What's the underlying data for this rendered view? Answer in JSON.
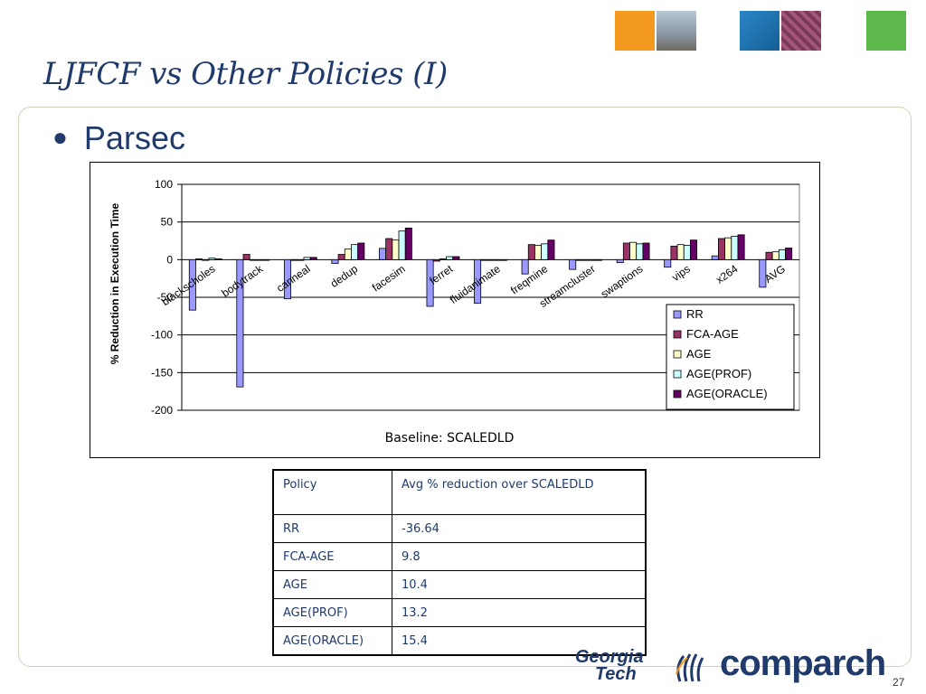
{
  "slide": {
    "title": "LJFCF vs Other Policies (I)",
    "bullet": "Parsec",
    "page_number": "27"
  },
  "header_images": [
    {
      "name": "orange-tile-icon",
      "color": "#f39a1f"
    },
    {
      "name": "photo-campus-icon",
      "color": "#9aa7b5"
    },
    {
      "name": "blue-tile-icon",
      "color": "#1e74b4"
    },
    {
      "name": "circuit-photo-icon",
      "color": "#7a3a55"
    },
    {
      "name": "green-tile-icon",
      "color": "#5cb84a"
    }
  ],
  "chart_data": {
    "type": "bar",
    "categories": [
      "blackscholes",
      "bodytrack",
      "canneal",
      "dedup",
      "facesim",
      "ferret",
      "fluidanimate",
      "freqmine",
      "streamcluster",
      "swaptions",
      "vips",
      "x264",
      "AVG"
    ],
    "series": [
      {
        "name": "RR",
        "color": "#9999ff",
        "values": [
          -67,
          -169,
          -52,
          -5,
          15,
          -62,
          -58,
          -19,
          -13,
          -4,
          -10,
          5,
          -36.64
        ]
      },
      {
        "name": "FCA-AGE",
        "color": "#993366",
        "values": [
          1,
          7,
          -1,
          7,
          28,
          -2,
          -1,
          20,
          -1,
          22,
          18,
          28,
          9.8
        ]
      },
      {
        "name": "AGE",
        "color": "#ffffcc",
        "values": [
          0,
          0,
          -1,
          14,
          26,
          1,
          -1,
          19,
          -1,
          23,
          20,
          29,
          10.4
        ]
      },
      {
        "name": "AGE(PROF)",
        "color": "#ccffff",
        "values": [
          2,
          0,
          3,
          20,
          38,
          4,
          -1,
          21,
          -1,
          21,
          19,
          31,
          13.2
        ]
      },
      {
        "name": "AGE(ORACLE)",
        "color": "#660066",
        "values": [
          1,
          0,
          3,
          22,
          42,
          4,
          -1,
          26,
          -1,
          22,
          26,
          33,
          15.4
        ]
      }
    ],
    "ylabel": "% Reduction in Execution Time",
    "ylim": [
      -200,
      100
    ],
    "yticks": [
      100,
      50,
      0,
      -50,
      -100,
      -150,
      -200
    ],
    "grid": true,
    "legend": "lower-right",
    "caption": "Baseline: SCALEDLD"
  },
  "table": {
    "headers": [
      "Policy",
      "Avg % reduction over  SCALEDLD"
    ],
    "rows": [
      [
        "RR",
        "-36.64"
      ],
      [
        "FCA-AGE",
        "9.8"
      ],
      [
        "AGE",
        "10.4"
      ],
      [
        "AGE(PROF)",
        "13.2"
      ],
      [
        "AGE(ORACLE)",
        "15.4"
      ]
    ]
  },
  "logos": {
    "gt_line1": "Georgia",
    "gt_line2": "Tech",
    "comparch": "comparch"
  }
}
